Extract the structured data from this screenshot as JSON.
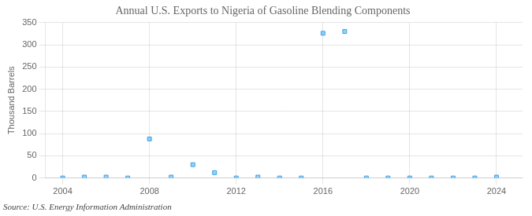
{
  "chart_data": {
    "type": "scatter",
    "title": "Annual U.S. Exports to Nigeria of Gasoline Blending Components",
    "y_label": "Thousand Barrels",
    "source": "Source: U.S. Energy Information Administration",
    "x": [
      2004,
      2005,
      2006,
      2007,
      2008,
      2009,
      2010,
      2011,
      2012,
      2013,
      2014,
      2015,
      2016,
      2017,
      2018,
      2019,
      2020,
      2021,
      2022,
      2023,
      2024
    ],
    "values": [
      0,
      2,
      2,
      0,
      88,
      2,
      30,
      12,
      0,
      2,
      0,
      0,
      326,
      330,
      0,
      0,
      0,
      0,
      0,
      0,
      2
    ],
    "marker": "square",
    "xlim": [
      2003.2,
      2025.2
    ],
    "xticks": [
      2004,
      2008,
      2012,
      2016,
      2020,
      2024
    ],
    "ylim": [
      0,
      350
    ],
    "yticks": [
      0,
      50,
      100,
      150,
      200,
      250,
      300,
      350
    ],
    "grid": true
  }
}
